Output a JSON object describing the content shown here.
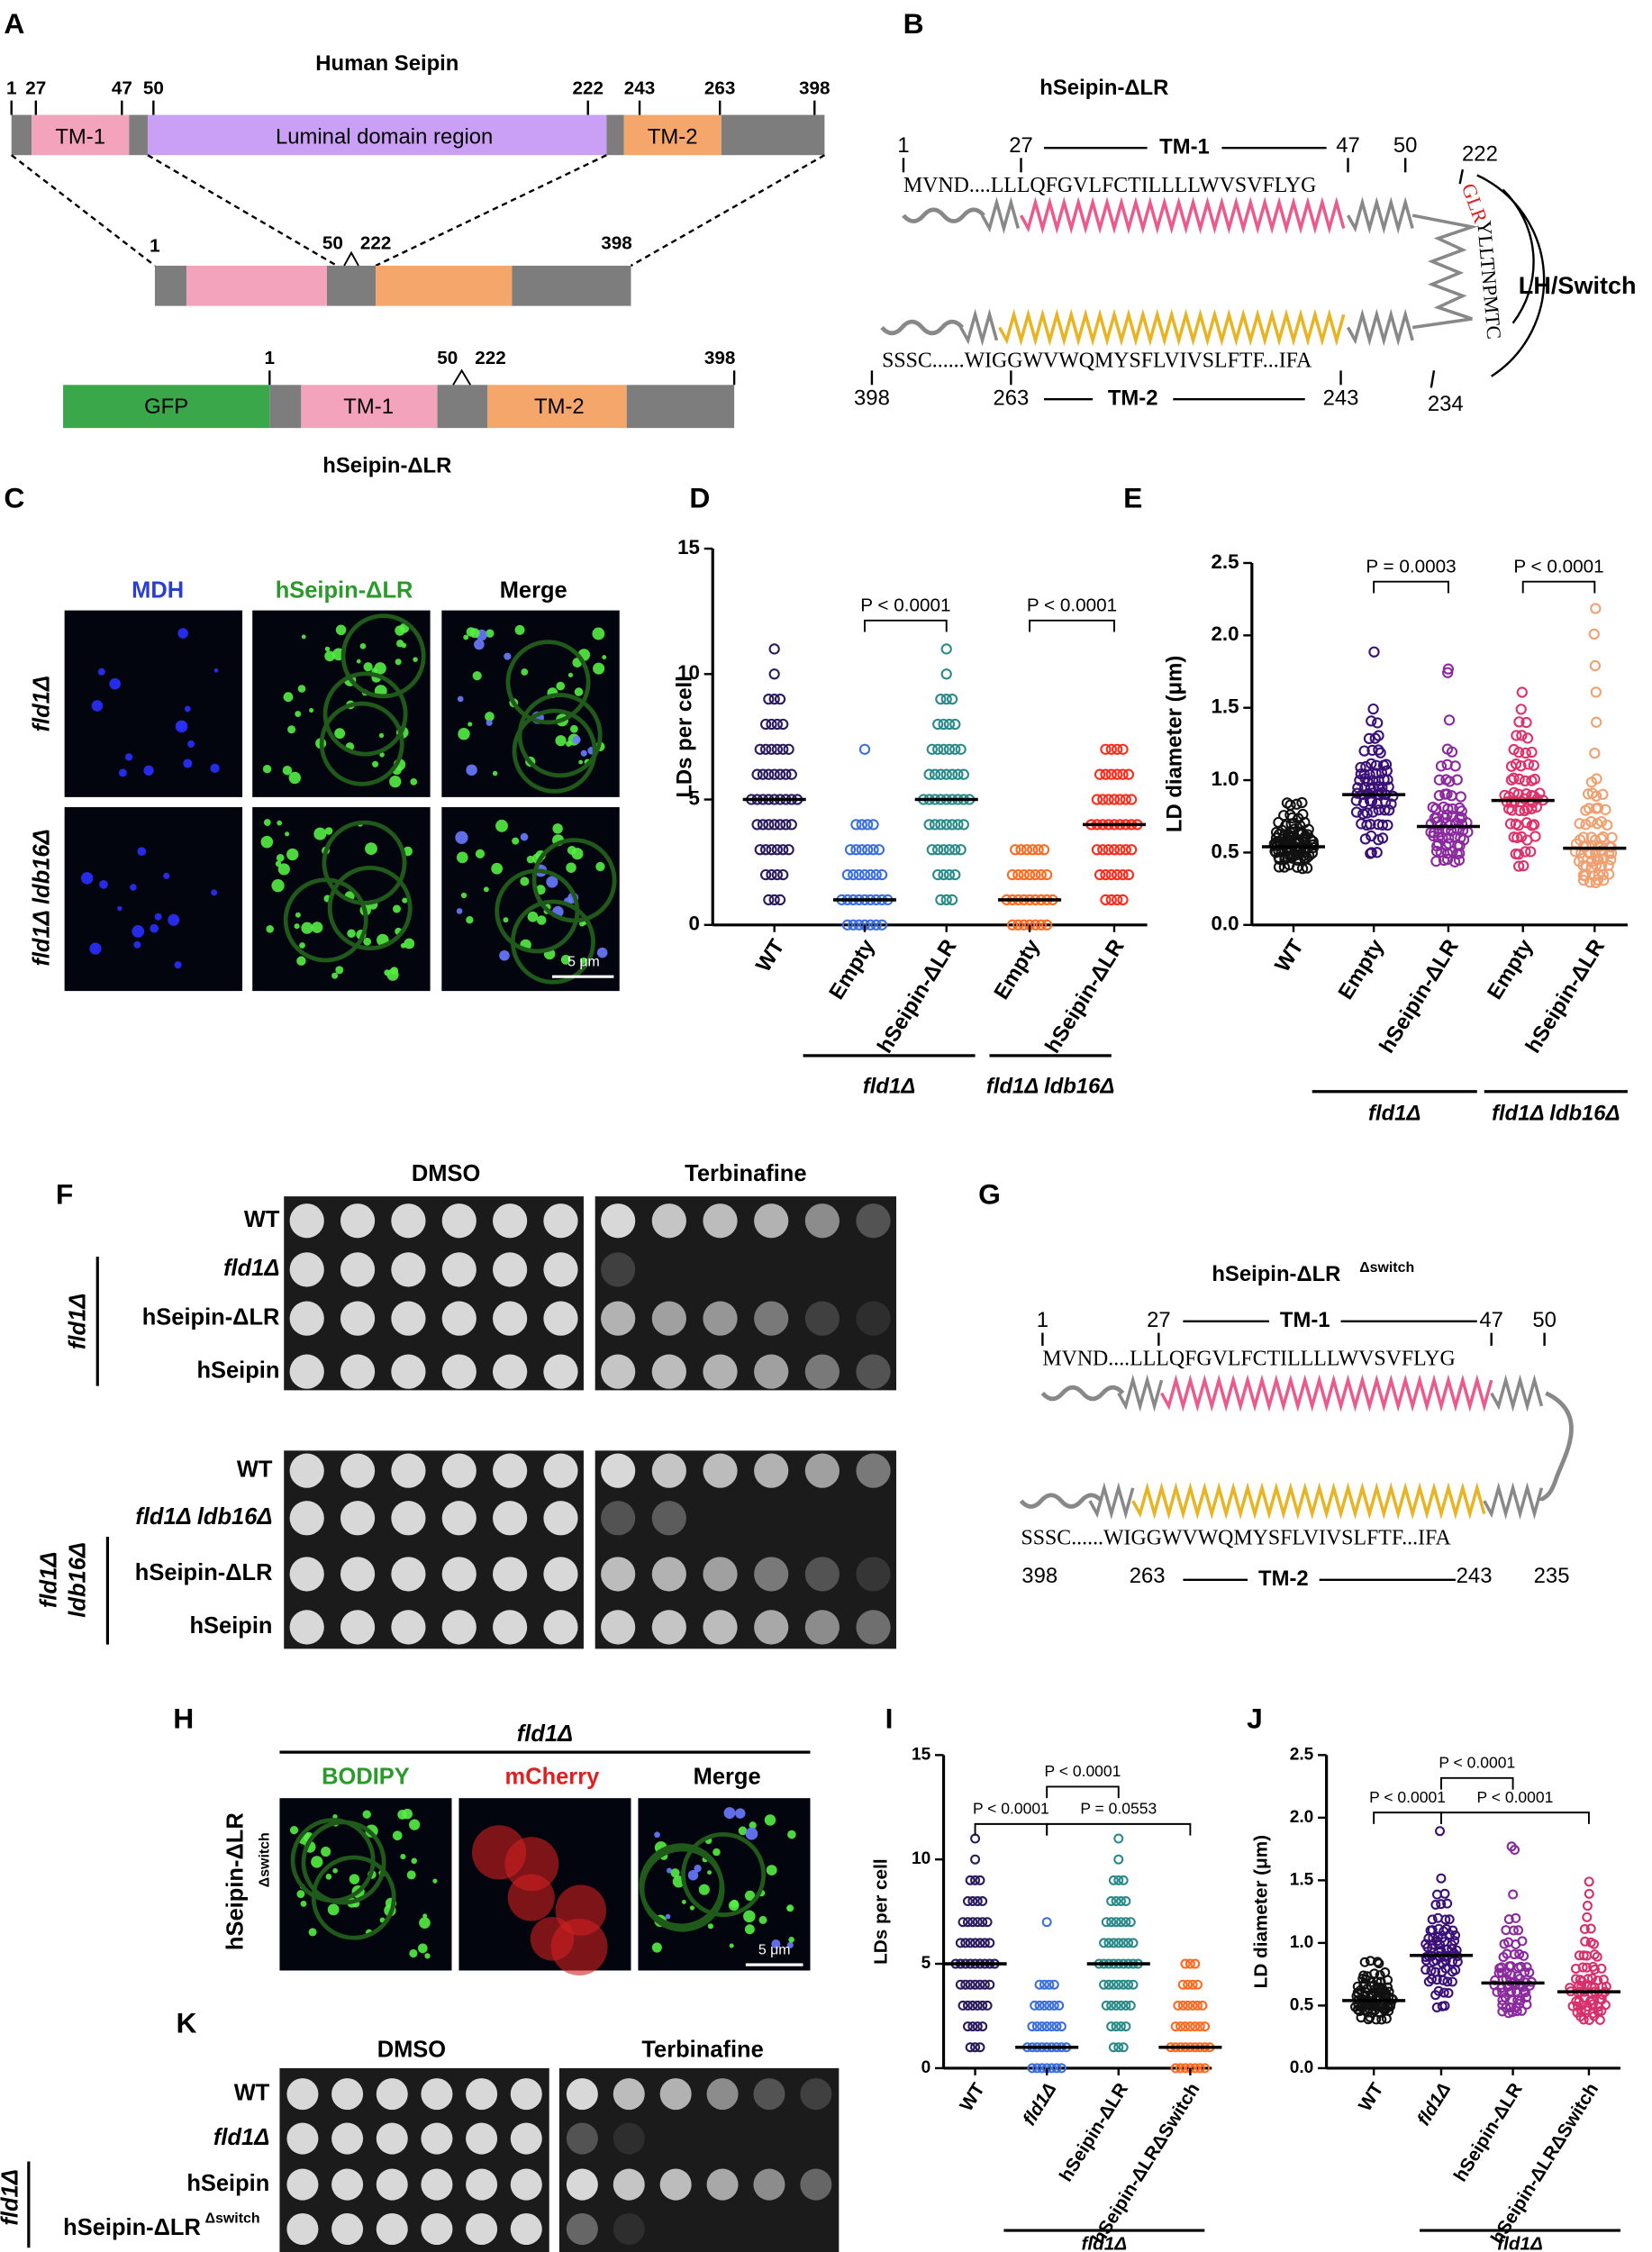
{
  "panels": {
    "A": {
      "label": "A",
      "title": "Human Seipin",
      "top_positions": [
        "1",
        "27",
        "47",
        "50",
        "222",
        "243",
        "263",
        "398"
      ],
      "top_domains": [
        "TM-1",
        "Luminal domain region",
        "TM-2"
      ],
      "middle_positions": [
        "1",
        "50",
        "222",
        "398"
      ],
      "bottom_positions": [
        "1",
        "50",
        "222",
        "398"
      ],
      "bottom_domains": [
        "GFP",
        "TM-1",
        "TM-2"
      ],
      "construct": "hSeipin-ΔLR"
    },
    "B": {
      "label": "B",
      "title": "hSeipin-ΔLR",
      "top_positions": [
        "1",
        "27",
        "47",
        "50"
      ],
      "tm1": "TM-1",
      "top_sequence": "MVND....LLLQFGVLFCTILLLLWVSVFLYG",
      "loop_start": "222",
      "loop_red": "GLR",
      "loop_rest": "YLLTNPMTC",
      "loop_end": "234",
      "switch_label": "LH/Switch",
      "bottom_sequence": "SSSC......WIGGWVWQMYSFLVIVSLFTF...IFA",
      "bottom_positions": [
        "398",
        "263",
        "243"
      ],
      "tm2": "TM-2"
    },
    "C": {
      "label": "C",
      "columns": [
        "MDH",
        "hSeipin-ΔLR",
        "Merge"
      ],
      "rows": [
        "fld1Δ",
        "fld1Δ ldb16Δ"
      ],
      "scale_bar": "5 μm"
    },
    "F": {
      "label": "F",
      "conditions": [
        "DMSO",
        "Terbinafine"
      ],
      "top_rows": [
        "WT",
        "fld1Δ",
        "hSeipin-ΔLR",
        "hSeipin"
      ],
      "top_bracket": "fld1Δ",
      "bottom_rows": [
        "WT",
        "fld1Δ ldb16Δ",
        "hSeipin-ΔLR",
        "hSeipin"
      ],
      "bottom_bracket": [
        "fld1Δ",
        "ldb16Δ"
      ]
    },
    "G": {
      "label": "G",
      "title": "hSeipin-ΔLR",
      "title_superscript": "Δswitch",
      "top_positions": [
        "1",
        "27",
        "47",
        "50"
      ],
      "tm1": "TM-1",
      "top_sequence": "MVND....LLLQFGVLFCTILLLLWVSVFLYG",
      "bottom_sequence": "SSSC......WIGGWVWQMYSFLVIVSLFTF...IFA",
      "bottom_positions": [
        "398",
        "263",
        "243",
        "235"
      ],
      "tm2": "TM-2"
    },
    "H": {
      "label": "H",
      "strain": "fld1Δ",
      "columns": [
        "BODIPY",
        "mCherry",
        "Merge"
      ],
      "row": "hSeipin-ΔLR",
      "row_subscript": "Δswitch",
      "scale_bar": "5 μm"
    },
    "K": {
      "label": "K",
      "conditions": [
        "DMSO",
        "Terbinafine"
      ],
      "rows": [
        "WT",
        "fld1Δ",
        "hSeipin",
        "hSeipin-ΔLR"
      ],
      "row_superscript": "Δswitch",
      "bracket": "fld1Δ"
    }
  },
  "chart_data": [
    {
      "type": "strip",
      "panel_label": "D",
      "ylabel": "LDs per cell",
      "categories": [
        "WT",
        "Empty",
        "hSeipin-ΔLR",
        "Empty",
        "hSeipin-ΔLR"
      ],
      "colors": [
        "#2a1a5e",
        "#3b6fe0",
        "#2a8a8a",
        "#ff6a20",
        "#ff2a1a"
      ],
      "values": [
        [
          1,
          2,
          3,
          4,
          5,
          6,
          7,
          8,
          9,
          10,
          11
        ],
        [
          0,
          1,
          2,
          3,
          4,
          7
        ],
        [
          1,
          2,
          3,
          4,
          5,
          6,
          7,
          8,
          9,
          10,
          11
        ],
        [
          0,
          1,
          2,
          3
        ],
        [
          1,
          2,
          3,
          4,
          5,
          6,
          7
        ]
      ],
      "medians": [
        5,
        1,
        5,
        1,
        4
      ],
      "ylim": [
        0,
        15
      ],
      "yticks": [
        0,
        5,
        10,
        15
      ],
      "annotations": [
        "P < 0.0001",
        "P < 0.0001"
      ],
      "group_labels": [
        "fld1Δ",
        "fld1Δ ldb16Δ"
      ]
    },
    {
      "type": "strip",
      "panel_label": "E",
      "ylabel": "LD diameter (μm)",
      "categories": [
        "WT",
        "Empty",
        "hSeipin-ΔLR",
        "Empty",
        "hSeipin-ΔLR"
      ],
      "colors": [
        "#111111",
        "#3a1078",
        "#8a2a9e",
        "#e0306a",
        "#f0a070"
      ],
      "values": [
        [
          0.4,
          0.45,
          0.48,
          0.5,
          0.52,
          0.54,
          0.56,
          0.58,
          0.6,
          0.62,
          0.65,
          0.7,
          0.75,
          0.84
        ],
        [
          0.5,
          0.6,
          0.7,
          0.78,
          0.85,
          0.9,
          0.95,
          1.0,
          1.05,
          1.1,
          1.2,
          1.3,
          1.4,
          1.5,
          1.9
        ],
        [
          0.45,
          0.5,
          0.55,
          0.6,
          0.65,
          0.7,
          0.75,
          0.8,
          0.9,
          1.0,
          1.1,
          1.2,
          1.4,
          1.75,
          1.78
        ],
        [
          0.4,
          0.5,
          0.6,
          0.7,
          0.8,
          0.86,
          0.9,
          1.0,
          1.1,
          1.2,
          1.3,
          1.4,
          1.5,
          1.6
        ],
        [
          0.3,
          0.35,
          0.4,
          0.45,
          0.5,
          0.55,
          0.6,
          0.7,
          0.8,
          0.9,
          1.0,
          1.2,
          1.4,
          1.6,
          1.8,
          2.0,
          2.2
        ]
      ],
      "medians": [
        0.54,
        0.9,
        0.68,
        0.86,
        0.53
      ],
      "ylim": [
        0,
        2.5
      ],
      "yticks": [
        {
          "value": 0,
          "label": "0.0"
        },
        0.5,
        {
          "value": 1,
          "label": "1.0"
        },
        1.5,
        {
          "value": 2,
          "label": "2.0"
        },
        2.5
      ],
      "annotations": [
        "P = 0.0003",
        "P < 0.0001"
      ],
      "group_labels": [
        "fld1Δ",
        "fld1Δ ldb16Δ"
      ]
    },
    {
      "type": "strip",
      "panel_label": "I",
      "ylabel": "LDs per cell",
      "categories": [
        "WT",
        "fld1Δ",
        "hSeipin-ΔLR",
        "hSeipin-ΔLRΔSwitch"
      ],
      "colors": [
        "#2a1a5e",
        "#3b6fe0",
        "#2a8a8a",
        "#ff6a20"
      ],
      "values": [
        [
          1,
          2,
          3,
          4,
          5,
          6,
          7,
          8,
          9,
          10,
          11
        ],
        [
          0,
          1,
          2,
          3,
          4,
          7
        ],
        [
          1,
          2,
          3,
          4,
          5,
          6,
          7,
          8,
          9,
          10,
          11
        ],
        [
          0,
          1,
          2,
          3,
          4,
          5
        ]
      ],
      "medians": [
        5,
        1,
        5,
        1
      ],
      "ylim": [
        0,
        15
      ],
      "yticks": [
        0,
        5,
        10,
        15
      ],
      "annotations": [
        "P < 0.0001",
        "P < 0.0001",
        "P = 0.0553"
      ],
      "group_labels": [
        "fld1Δ"
      ]
    },
    {
      "type": "strip",
      "panel_label": "J",
      "ylabel": "LD diameter (μm)",
      "categories": [
        "WT",
        "fld1Δ",
        "hSeipin-ΔLR",
        "hSeipin-ΔLRΔSwitch"
      ],
      "colors": [
        "#111111",
        "#3a1078",
        "#8a2a9e",
        "#d8306a"
      ],
      "values": [
        [
          0.4,
          0.45,
          0.48,
          0.5,
          0.52,
          0.54,
          0.56,
          0.58,
          0.6,
          0.62,
          0.65,
          0.7,
          0.75,
          0.84
        ],
        [
          0.5,
          0.6,
          0.7,
          0.78,
          0.85,
          0.9,
          0.95,
          1.0,
          1.05,
          1.1,
          1.2,
          1.3,
          1.4,
          1.5,
          1.9
        ],
        [
          0.45,
          0.5,
          0.55,
          0.6,
          0.65,
          0.7,
          0.75,
          0.8,
          0.9,
          1.0,
          1.1,
          1.2,
          1.4,
          1.75,
          1.78
        ],
        [
          0.4,
          0.45,
          0.5,
          0.55,
          0.6,
          0.65,
          0.7,
          0.8,
          0.9,
          1.0,
          1.1,
          1.2,
          1.3,
          1.4,
          1.5
        ]
      ],
      "medians": [
        0.54,
        0.9,
        0.68,
        0.61
      ],
      "ylim": [
        0,
        2.5
      ],
      "yticks": [
        {
          "value": 0,
          "label": "0.0"
        },
        0.5,
        {
          "value": 1,
          "label": "1.0"
        },
        1.5,
        {
          "value": 2,
          "label": "2.0"
        },
        2.5
      ],
      "annotations": [
        "P < 0.0001",
        "P < 0.0001",
        "P < 0.0001"
      ],
      "group_labels": [
        "fld1Δ"
      ]
    }
  ]
}
